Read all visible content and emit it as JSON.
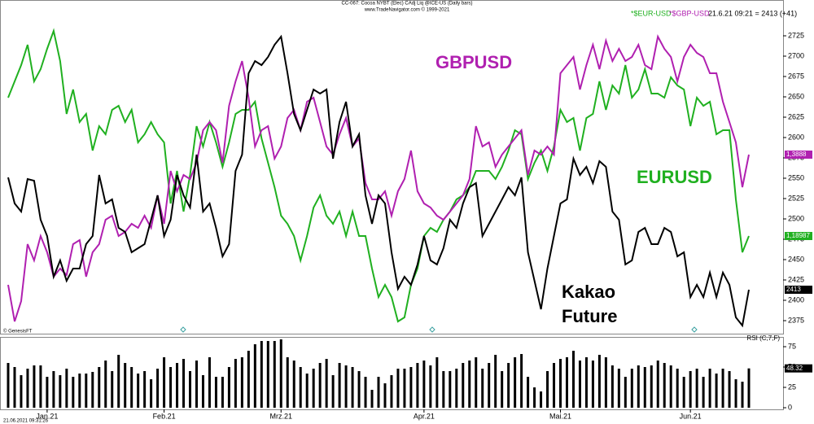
{
  "chart_data": [
    {
      "type": "line",
      "title": "CC-067: Cocoa NYBT (Elec) CAdj Liq @ICE-US  (Daily bars)",
      "subtitle": "www.TradeNavigator.com © 1999-2021",
      "header": "21.6.21 09:21 = 2413 (+41)",
      "source": "© GenesisFT",
      "timestamp": "21.06.2021 09:31:26",
      "ylim": [
        2359,
        2769
      ],
      "yticks": [
        2375,
        2400,
        2425,
        2450,
        2475,
        2500,
        2525,
        2550,
        2575,
        2600,
        2625,
        2650,
        2675,
        2700,
        2725
      ],
      "annotations": [
        {
          "text": "GBPUSD",
          "color": "#b020b0"
        },
        {
          "text": "EURUSD",
          "color": "#20b020"
        },
        {
          "text": "Kakao",
          "color": "#000000"
        },
        {
          "text": "Future",
          "color": "#000000"
        }
      ],
      "series": [
        {
          "name": "*$EUR-USD",
          "color": "#20b020",
          "last_label": "1,18987",
          "values": [
            2649,
            2669,
            2689,
            2714,
            2669,
            2684,
            2709,
            2731,
            2694,
            2629,
            2659,
            2619,
            2629,
            2584,
            2614,
            2604,
            2634,
            2639,
            2619,
            2634,
            2594,
            2604,
            2619,
            2604,
            2594,
            2519,
            2559,
            2509,
            2554,
            2614,
            2589,
            2619,
            2594,
            2564,
            2594,
            2629,
            2634,
            2634,
            2644,
            2599,
            2569,
            2539,
            2504,
            2494,
            2479,
            2449,
            2479,
            2514,
            2529,
            2504,
            2494,
            2509,
            2479,
            2509,
            2479,
            2479,
            2439,
            2404,
            2419,
            2404,
            2374,
            2379,
            2419,
            2439,
            2479,
            2489,
            2484,
            2499,
            2509,
            2524,
            2529,
            2539,
            2559,
            2559,
            2559,
            2549,
            2564,
            2584,
            2609,
            2604,
            2549,
            2569,
            2584,
            2559,
            2589,
            2634,
            2619,
            2624,
            2584,
            2624,
            2629,
            2669,
            2634,
            2664,
            2654,
            2689,
            2649,
            2659,
            2684,
            2654,
            2654,
            2649,
            2674,
            2664,
            2659,
            2614,
            2649,
            2639,
            2644,
            2604,
            2609,
            2609,
            2524,
            2459,
            2479
          ]
        },
        {
          "name": "*$GBP-USD",
          "color": "#b020b0",
          "last_label": "1,3888",
          "values": [
            2419,
            2374,
            2399,
            2469,
            2449,
            2479,
            2459,
            2429,
            2439,
            2431,
            2469,
            2474,
            2429,
            2459,
            2469,
            2499,
            2504,
            2479,
            2484,
            2494,
            2489,
            2504,
            2489,
            2529,
            2494,
            2559,
            2534,
            2554,
            2549,
            2569,
            2609,
            2619,
            2609,
            2569,
            2639,
            2669,
            2694,
            2649,
            2589,
            2609,
            2614,
            2574,
            2589,
            2624,
            2634,
            2609,
            2644,
            2649,
            2619,
            2589,
            2579,
            2604,
            2624,
            2589,
            2599,
            2544,
            2524,
            2524,
            2534,
            2504,
            2534,
            2549,
            2584,
            2534,
            2519,
            2514,
            2504,
            2499,
            2509,
            2519,
            2529,
            2549,
            2614,
            2589,
            2594,
            2564,
            2579,
            2589,
            2599,
            2609,
            2554,
            2584,
            2579,
            2589,
            2579,
            2679,
            2689,
            2699,
            2659,
            2689,
            2714,
            2684,
            2719,
            2694,
            2709,
            2694,
            2699,
            2714,
            2689,
            2684,
            2724,
            2709,
            2699,
            2669,
            2699,
            2714,
            2704,
            2699,
            2679,
            2679,
            2644,
            2619,
            2594,
            2539,
            2579
          ]
        },
        {
          "name": "Kakao Future",
          "color": "#000000",
          "values": [
            2551,
            2519,
            2509,
            2549,
            2547,
            2499,
            2479,
            2429,
            2449,
            2424,
            2439,
            2439,
            2469,
            2479,
            2554,
            2519,
            2524,
            2489,
            2484,
            2459,
            2464,
            2469,
            2499,
            2529,
            2479,
            2499,
            2554,
            2529,
            2514,
            2579,
            2509,
            2519,
            2489,
            2454,
            2469,
            2559,
            2579,
            2679,
            2694,
            2689,
            2699,
            2714,
            2724,
            2679,
            2629,
            2609,
            2634,
            2659,
            2654,
            2659,
            2574,
            2619,
            2644,
            2589,
            2604,
            2529,
            2494,
            2529,
            2519,
            2459,
            2414,
            2429,
            2419,
            2444,
            2479,
            2449,
            2444,
            2464,
            2499,
            2489,
            2519,
            2539,
            2544,
            2479,
            2494,
            2509,
            2524,
            2539,
            2529,
            2551,
            2459,
            2424,
            2389,
            2439,
            2479,
            2519,
            2524,
            2574,
            2554,
            2564,
            2544,
            2571,
            2564,
            2509,
            2499,
            2444,
            2449,
            2484,
            2489,
            2469,
            2469,
            2489,
            2484,
            2454,
            2459,
            2404,
            2419,
            2404,
            2434,
            2404,
            2434,
            2419,
            2379,
            2369,
            2413
          ]
        }
      ]
    },
    {
      "type": "bar",
      "title": "RSI (C,7,F)",
      "color": "#000000",
      "value_labels_last": "48.32",
      "ylim": [
        -2,
        87
      ],
      "yticks": [
        0,
        25,
        50,
        75
      ],
      "xticks": [
        {
          "value": 6,
          "label": "Jan.21"
        },
        {
          "value": 24,
          "label": "Feb.21"
        },
        {
          "value": 42,
          "label": "Mrz.21"
        },
        {
          "value": 64,
          "label": "Apr.21"
        },
        {
          "value": 85,
          "label": "Mai.21"
        },
        {
          "value": 105,
          "label": "Jun.21"
        }
      ],
      "values": [
        55,
        50,
        40,
        48,
        52,
        52,
        38,
        45,
        40,
        48,
        38,
        42,
        42,
        44,
        50,
        58,
        45,
        65,
        55,
        50,
        42,
        45,
        35,
        48,
        62,
        50,
        55,
        60,
        45,
        58,
        40,
        62,
        38,
        38,
        50,
        60,
        62,
        70,
        78,
        82,
        82,
        82,
        84,
        62,
        58,
        50,
        42,
        48,
        55,
        60,
        40,
        55,
        52,
        50,
        45,
        38,
        22,
        38,
        30,
        40,
        48,
        48,
        50,
        55,
        58,
        52,
        62,
        45,
        45,
        48,
        55,
        58,
        62,
        48,
        55,
        65,
        45,
        55,
        62,
        66,
        38,
        25,
        20,
        45,
        55,
        60,
        62,
        70,
        58,
        62,
        58,
        65,
        62,
        52,
        48,
        38,
        48,
        52,
        50,
        52,
        58,
        55,
        52,
        48,
        38,
        45,
        48,
        38,
        48,
        42,
        48,
        45,
        35,
        32,
        48.32
      ]
    }
  ]
}
